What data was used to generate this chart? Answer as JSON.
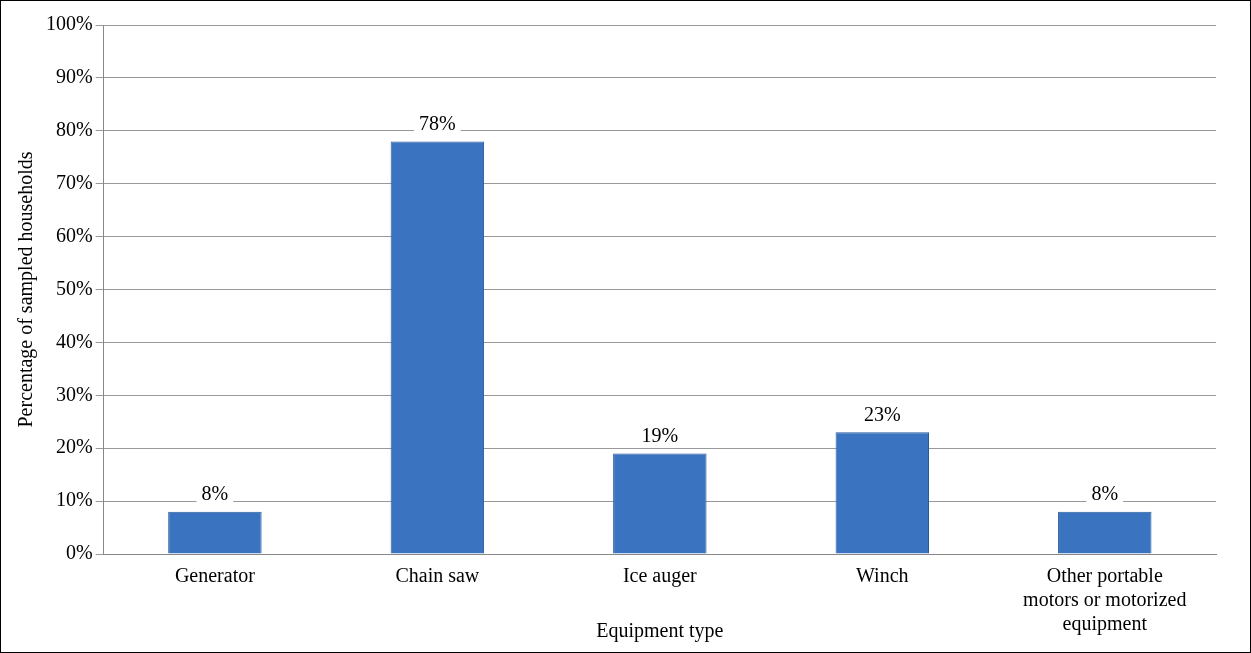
{
  "chart_data": {
    "type": "bar",
    "xlabel": "Equipment type",
    "ylabel": "Percentage of sampled households",
    "categories": [
      "Generator",
      "Chain saw",
      "Ice auger",
      "Winch",
      "Other portable motors or motorized equipment"
    ],
    "values": [
      8,
      78,
      19,
      23,
      8
    ],
    "value_labels": [
      "8%",
      "78%",
      "19%",
      "23%",
      "8%"
    ],
    "color": "#3a73c0",
    "ylim": [
      0,
      100
    ],
    "yticks": [
      {
        "value": 0,
        "label": "0%"
      },
      {
        "value": 10,
        "label": "10%"
      },
      {
        "value": 20,
        "label": "20%"
      },
      {
        "value": 30,
        "label": "30%"
      },
      {
        "value": 40,
        "label": "40%"
      },
      {
        "value": 50,
        "label": "50%"
      },
      {
        "value": 60,
        "label": "60%"
      },
      {
        "value": 70,
        "label": "70%"
      },
      {
        "value": 80,
        "label": "80%"
      },
      {
        "value": 90,
        "label": "90%"
      },
      {
        "value": 100,
        "label": "100%"
      }
    ],
    "grid": "y",
    "legend": false
  }
}
